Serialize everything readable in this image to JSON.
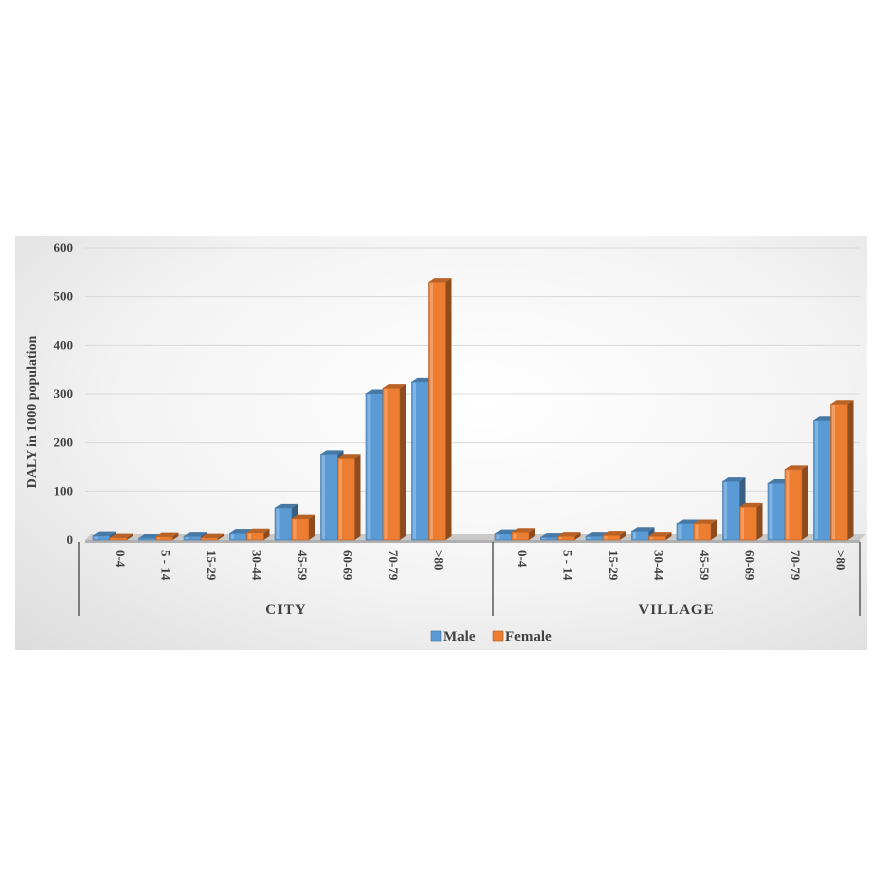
{
  "chart_data": {
    "type": "bar",
    "ylabel": "DALY in 1000 population",
    "ylim": [
      0,
      600
    ],
    "yticks": [
      0,
      100,
      200,
      300,
      400,
      500,
      600
    ],
    "grid": true,
    "legend_position": "bottom",
    "groups": [
      {
        "label": "CITY",
        "categories": [
          "0-4",
          "5 - 14",
          "15-29",
          "30-44",
          "45-59",
          "60-69",
          "70-79",
          ">80"
        ],
        "series": [
          {
            "name": "Male",
            "color": "#5b9bd5",
            "values": [
              9,
              4,
              8,
              14,
              66,
              176,
              301,
              325
            ]
          },
          {
            "name": "Female",
            "color": "#ed7d31",
            "values": [
              5,
              7,
              5,
              15,
              44,
              168,
              312,
              530
            ]
          }
        ]
      },
      {
        "label": "VILLAGE",
        "categories": [
          "0-4",
          "5 - 14",
          "15-29",
          "30-44",
          "45-59",
          "60-69",
          "70-79",
          ">80"
        ],
        "series": [
          {
            "name": "Male",
            "color": "#5b9bd5",
            "values": [
              13,
              6,
              8,
              18,
              34,
              121,
              117,
              246
            ]
          },
          {
            "name": "Female",
            "color": "#ed7d31",
            "values": [
              16,
              8,
              10,
              8,
              34,
              68,
              145,
              279
            ]
          }
        ]
      }
    ],
    "legend": [
      {
        "name": "Male",
        "color": "#5b9bd5"
      },
      {
        "name": "Female",
        "color": "#ed7d31"
      }
    ]
  }
}
